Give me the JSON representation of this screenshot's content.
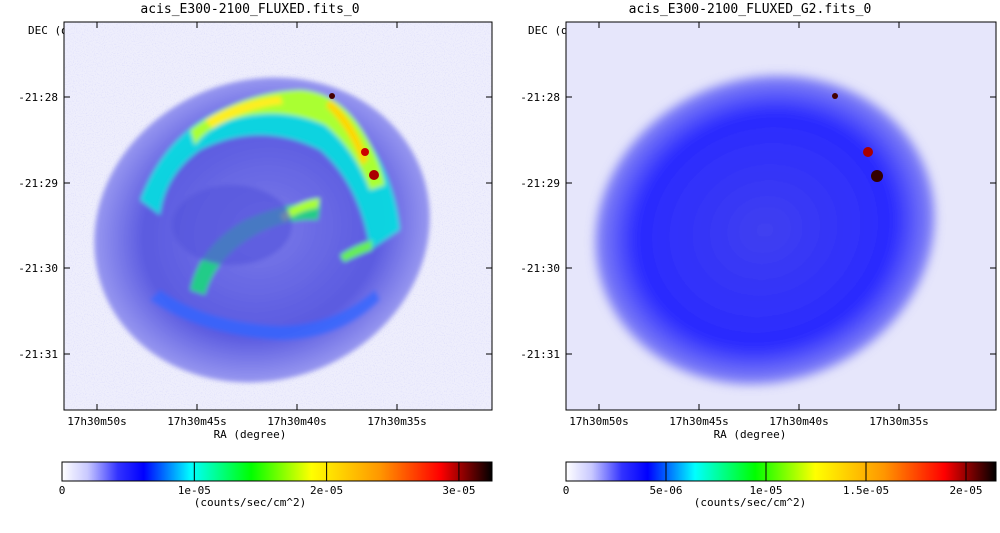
{
  "left": {
    "title": "acis_E300-2100_FLUXED.fits_0",
    "dec_label": "DEC (degree)",
    "ra_label": "RA (degree)",
    "dec_ticks": [
      "-21:28",
      "-21:29",
      "-21:30",
      "-21:31"
    ],
    "ra_ticks": [
      "17h30m50s",
      "17h30m45s",
      "17h30m40s",
      "17h30m35s"
    ],
    "colorbar_ticks": [
      "0",
      "1e-05",
      "2e-05",
      "3e-05"
    ],
    "colorbar_values": [
      0,
      1e-05,
      2e-05,
      3e-05
    ],
    "colorbar_max": 3.25e-05,
    "units": "(counts/sec/cm^2)"
  },
  "right": {
    "title": "acis_E300-2100_FLUXED_G2.fits_0",
    "dec_label": "DEC (degree)",
    "ra_label": "RA (degree)",
    "dec_ticks": [
      "-21:28",
      "-21:29",
      "-21:30",
      "-21:31"
    ],
    "ra_ticks": [
      "17h30m50s",
      "17h30m45s",
      "17h30m40s",
      "17h30m35s"
    ],
    "colorbar_ticks": [
      "0",
      "5e-06",
      "1e-05",
      "1.5e-05",
      "2e-05"
    ],
    "colorbar_values": [
      0,
      5e-06,
      1e-05,
      1.5e-05,
      2e-05
    ],
    "colorbar_max": 2.15e-05,
    "units": "(counts/sec/cm^2)"
  },
  "colormap": [
    "#ffffff",
    "#c8c8ff",
    "#3232ff",
    "#0000ff",
    "#00ffff",
    "#00ff00",
    "#ffff00",
    "#ff9600",
    "#ff0000",
    "#000000"
  ]
}
